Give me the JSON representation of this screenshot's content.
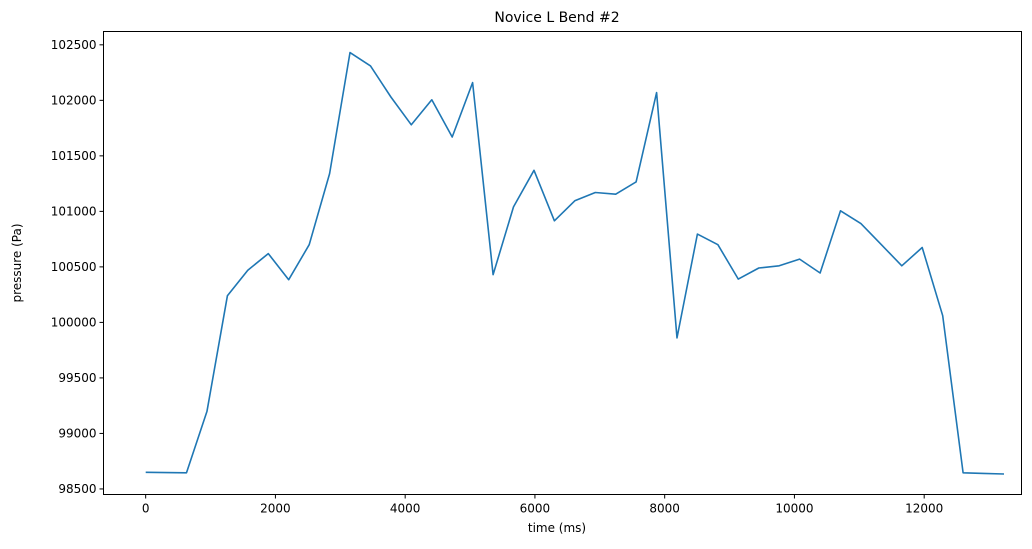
{
  "chart_data": {
    "type": "line",
    "title": "Novice L Bend #2",
    "xlabel": "time (ms)",
    "ylabel": "pressure (Pa)",
    "xlim": [
      -650,
      13500
    ],
    "ylim": [
      98450,
      102620
    ],
    "xticks": [
      0,
      2000,
      4000,
      6000,
      8000,
      10000,
      12000
    ],
    "xtick_labels": [
      "0",
      "2000",
      "4000",
      "6000",
      "8000",
      "10000",
      "12000"
    ],
    "yticks": [
      98500,
      99000,
      99500,
      100000,
      100500,
      101000,
      101500,
      102000,
      102500
    ],
    "ytick_labels": [
      "98500",
      "99000",
      "99500",
      "100000",
      "100500",
      "101000",
      "101500",
      "102000",
      "102500"
    ],
    "grid": false,
    "series": [
      {
        "color": "#1f77b4",
        "x": [
          0,
          630,
          945,
          1260,
          1575,
          1890,
          2205,
          2520,
          2835,
          3150,
          3465,
          3780,
          4095,
          4410,
          4725,
          5040,
          5355,
          5670,
          5985,
          6300,
          6615,
          6930,
          7245,
          7560,
          7875,
          8190,
          8505,
          8820,
          9135,
          9450,
          9765,
          10080,
          10395,
          10710,
          11025,
          11340,
          11655,
          11970,
          12285,
          12600,
          12915,
          13230
        ],
        "y": [
          98650,
          98645,
          99200,
          100240,
          100470,
          100620,
          100385,
          100700,
          101340,
          102430,
          102310,
          102030,
          101780,
          102005,
          101670,
          102160,
          100430,
          101040,
          101370,
          100915,
          101095,
          101170,
          101155,
          101265,
          102070,
          99860,
          100795,
          100700,
          100390,
          100490,
          100510,
          100570,
          100445,
          101005,
          100890,
          100700,
          100510,
          100675,
          100060,
          98645,
          98640,
          98635
        ]
      }
    ]
  }
}
